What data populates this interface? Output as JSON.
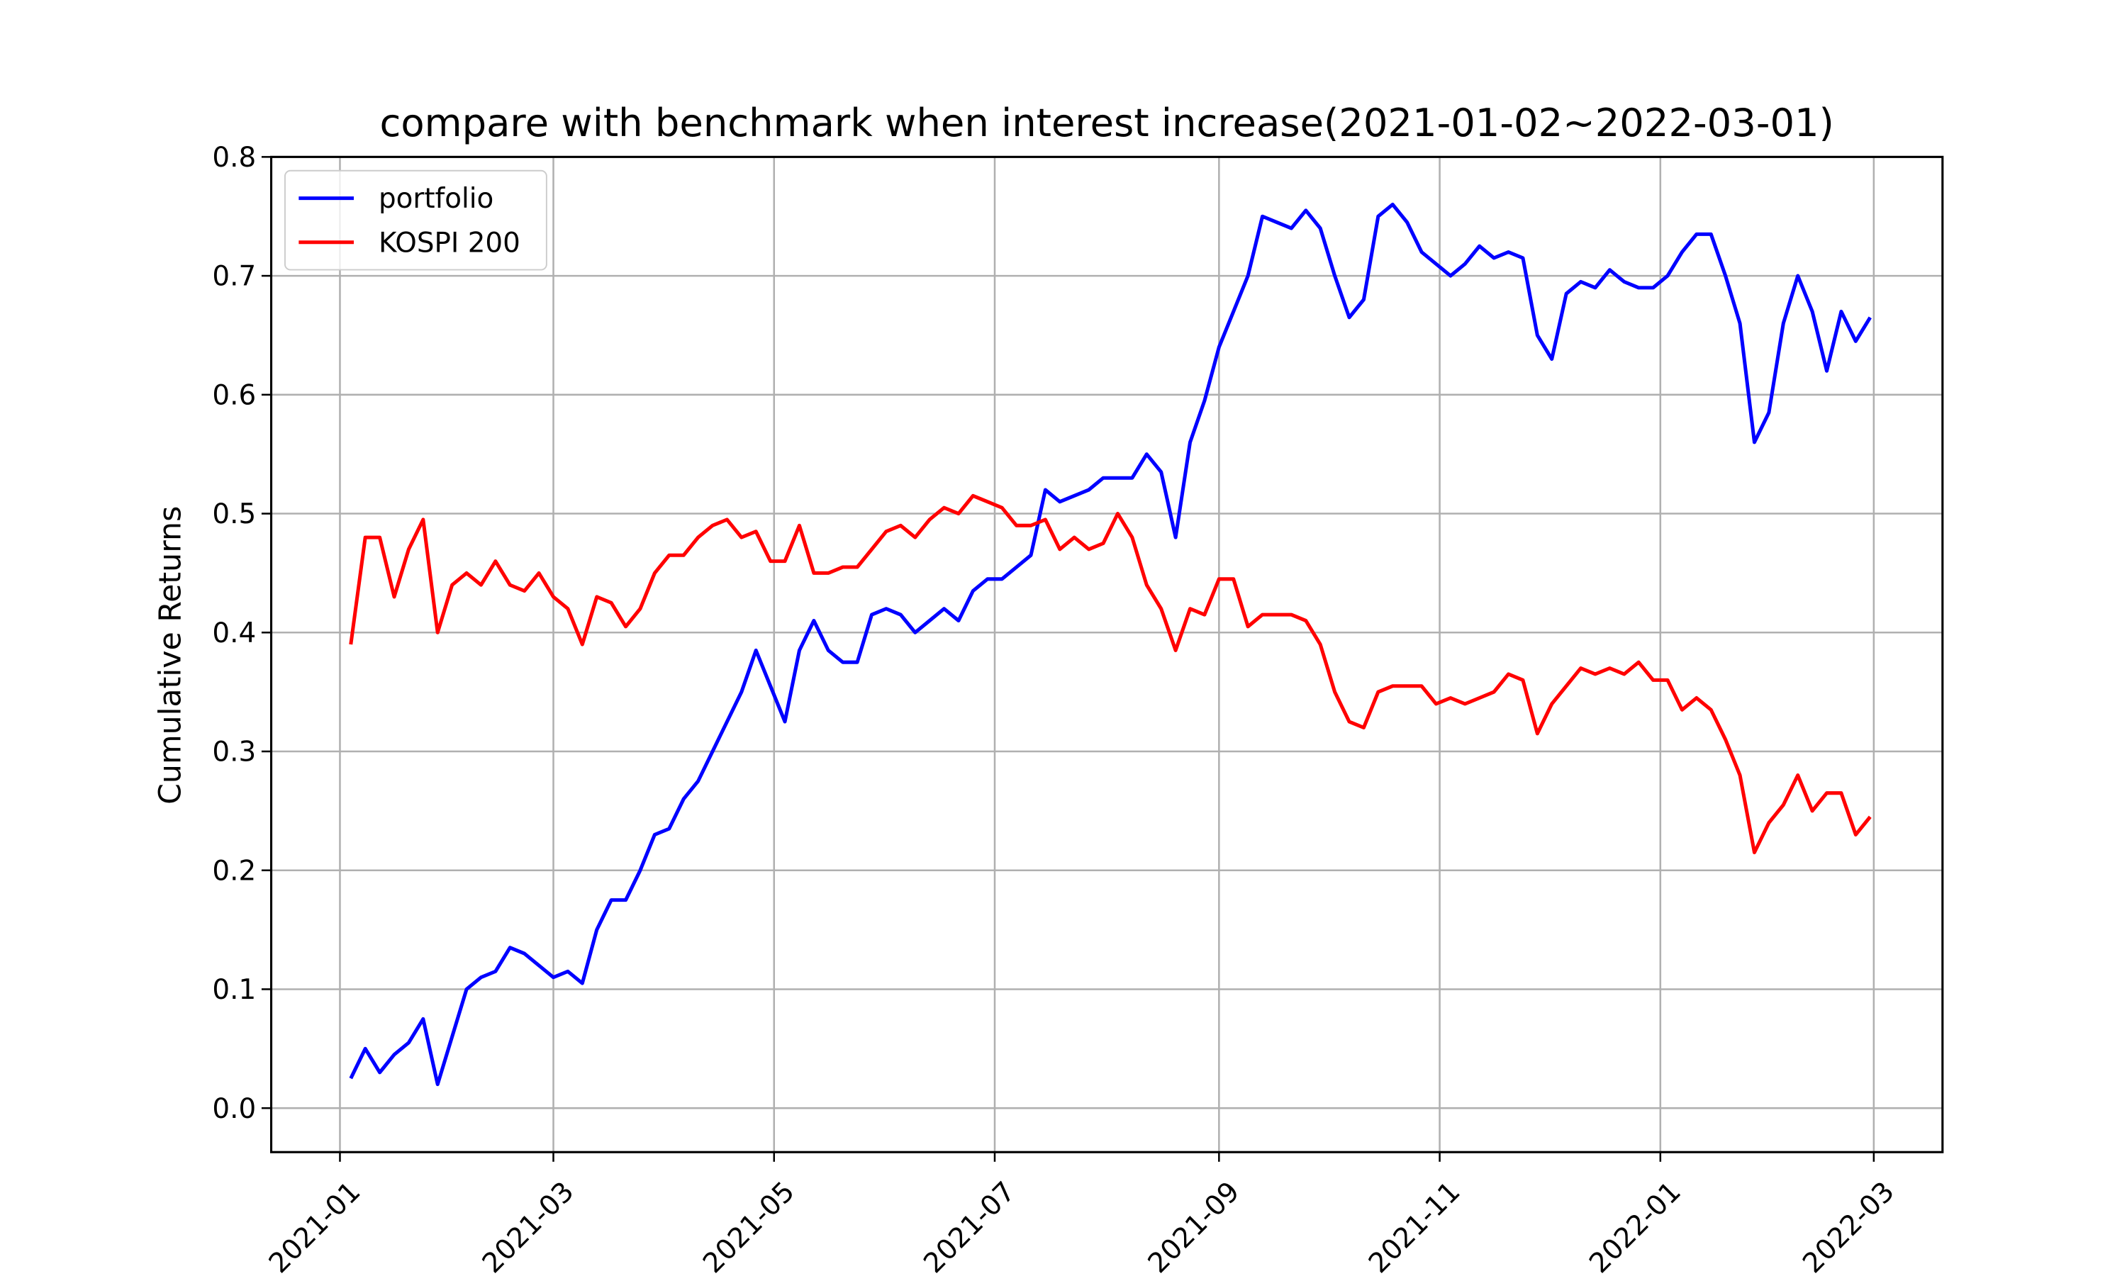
{
  "chart_data": {
    "type": "line",
    "title": "compare with benchmark when interest increase(2021-01-02~2022-03-01)",
    "y_label": "Cumulative Returns",
    "x": [
      "2021-01-04",
      "2021-01-08",
      "2021-01-12",
      "2021-01-16",
      "2021-01-20",
      "2021-01-24",
      "2021-01-28",
      "2021-02-01",
      "2021-02-05",
      "2021-02-09",
      "2021-02-13",
      "2021-02-17",
      "2021-02-21",
      "2021-02-25",
      "2021-03-01",
      "2021-03-05",
      "2021-03-09",
      "2021-03-13",
      "2021-03-17",
      "2021-03-21",
      "2021-03-25",
      "2021-03-29",
      "2021-04-02",
      "2021-04-06",
      "2021-04-10",
      "2021-04-14",
      "2021-04-18",
      "2021-04-22",
      "2021-04-26",
      "2021-04-30",
      "2021-05-04",
      "2021-05-08",
      "2021-05-12",
      "2021-05-16",
      "2021-05-20",
      "2021-05-24",
      "2021-05-28",
      "2021-06-01",
      "2021-06-05",
      "2021-06-09",
      "2021-06-13",
      "2021-06-17",
      "2021-06-21",
      "2021-06-25",
      "2021-06-29",
      "2021-07-03",
      "2021-07-07",
      "2021-07-11",
      "2021-07-15",
      "2021-07-19",
      "2021-07-23",
      "2021-07-27",
      "2021-07-31",
      "2021-08-04",
      "2021-08-08",
      "2021-08-12",
      "2021-08-16",
      "2021-08-20",
      "2021-08-24",
      "2021-08-28",
      "2021-09-01",
      "2021-09-05",
      "2021-09-09",
      "2021-09-13",
      "2021-09-17",
      "2021-09-21",
      "2021-09-25",
      "2021-09-29",
      "2021-10-03",
      "2021-10-07",
      "2021-10-11",
      "2021-10-15",
      "2021-10-19",
      "2021-10-23",
      "2021-10-27",
      "2021-10-31",
      "2021-11-04",
      "2021-11-08",
      "2021-11-12",
      "2021-11-16",
      "2021-11-20",
      "2021-11-24",
      "2021-11-28",
      "2021-12-02",
      "2021-12-06",
      "2021-12-10",
      "2021-12-14",
      "2021-12-18",
      "2021-12-22",
      "2021-12-26",
      "2021-12-30",
      "2022-01-03",
      "2022-01-07",
      "2022-01-11",
      "2022-01-15",
      "2022-01-19",
      "2022-01-23",
      "2022-01-27",
      "2022-01-31",
      "2022-02-04",
      "2022-02-08",
      "2022-02-12",
      "2022-02-16",
      "2022-02-20",
      "2022-02-24",
      "2022-02-28"
    ],
    "series": [
      {
        "name": "portfolio",
        "color": "#0000ff",
        "values": [
          0.025,
          0.05,
          0.03,
          0.045,
          0.055,
          0.075,
          0.02,
          0.06,
          0.1,
          0.11,
          0.115,
          0.135,
          0.13,
          0.12,
          0.11,
          0.115,
          0.105,
          0.15,
          0.175,
          0.175,
          0.2,
          0.23,
          0.235,
          0.26,
          0.275,
          0.3,
          0.325,
          0.35,
          0.385,
          0.355,
          0.325,
          0.385,
          0.41,
          0.385,
          0.375,
          0.375,
          0.415,
          0.42,
          0.415,
          0.4,
          0.41,
          0.42,
          0.41,
          0.435,
          0.445,
          0.445,
          0.455,
          0.465,
          0.52,
          0.51,
          0.515,
          0.52,
          0.53,
          0.53,
          0.53,
          0.55,
          0.535,
          0.48,
          0.56,
          0.595,
          0.64,
          0.67,
          0.7,
          0.75,
          0.745,
          0.74,
          0.755,
          0.74,
          0.7,
          0.665,
          0.68,
          0.75,
          0.76,
          0.745,
          0.72,
          0.71,
          0.7,
          0.71,
          0.725,
          0.715,
          0.72,
          0.715,
          0.65,
          0.63,
          0.685,
          0.695,
          0.69,
          0.705,
          0.695,
          0.69,
          0.69,
          0.7,
          0.72,
          0.735,
          0.735,
          0.7,
          0.66,
          0.56,
          0.585,
          0.66,
          0.7,
          0.67,
          0.62,
          0.67,
          0.645,
          0.665
        ]
      },
      {
        "name": "KOSPI 200",
        "color": "#ff0000",
        "values": [
          0.39,
          0.48,
          0.48,
          0.43,
          0.47,
          0.495,
          0.4,
          0.44,
          0.45,
          0.44,
          0.46,
          0.44,
          0.435,
          0.45,
          0.43,
          0.42,
          0.39,
          0.43,
          0.425,
          0.405,
          0.42,
          0.45,
          0.465,
          0.465,
          0.48,
          0.49,
          0.495,
          0.48,
          0.485,
          0.46,
          0.46,
          0.49,
          0.45,
          0.45,
          0.455,
          0.455,
          0.47,
          0.485,
          0.49,
          0.48,
          0.495,
          0.505,
          0.5,
          0.515,
          0.51,
          0.505,
          0.49,
          0.49,
          0.495,
          0.47,
          0.48,
          0.47,
          0.475,
          0.5,
          0.48,
          0.44,
          0.42,
          0.385,
          0.42,
          0.415,
          0.445,
          0.445,
          0.405,
          0.415,
          0.415,
          0.415,
          0.41,
          0.39,
          0.35,
          0.325,
          0.32,
          0.35,
          0.355,
          0.355,
          0.355,
          0.34,
          0.345,
          0.34,
          0.345,
          0.35,
          0.365,
          0.36,
          0.315,
          0.34,
          0.355,
          0.37,
          0.365,
          0.37,
          0.365,
          0.375,
          0.36,
          0.36,
          0.335,
          0.345,
          0.335,
          0.31,
          0.28,
          0.215,
          0.24,
          0.255,
          0.28,
          0.25,
          0.265,
          0.265,
          0.23,
          0.245
        ]
      }
    ],
    "xlim": [
      "2020-12-13",
      "2022-03-20"
    ],
    "xticks": [
      {
        "value": "2021-01-01",
        "label": "2021-01"
      },
      {
        "value": "2021-03-01",
        "label": "2021-03"
      },
      {
        "value": "2021-05-01",
        "label": "2021-05"
      },
      {
        "value": "2021-07-01",
        "label": "2021-07"
      },
      {
        "value": "2021-09-01",
        "label": "2021-09"
      },
      {
        "value": "2021-11-01",
        "label": "2021-11"
      },
      {
        "value": "2022-01-01",
        "label": "2022-01"
      },
      {
        "value": "2022-03-01",
        "label": "2022-03"
      }
    ],
    "ylim": [
      -0.037,
      0.8
    ],
    "yticks": [
      {
        "value": 0,
        "label": "0.0"
      },
      0.1,
      0.2,
      0.3,
      0.4,
      0.5,
      0.6,
      0.7,
      0.8
    ],
    "grid": true,
    "legend": "upper left"
  }
}
